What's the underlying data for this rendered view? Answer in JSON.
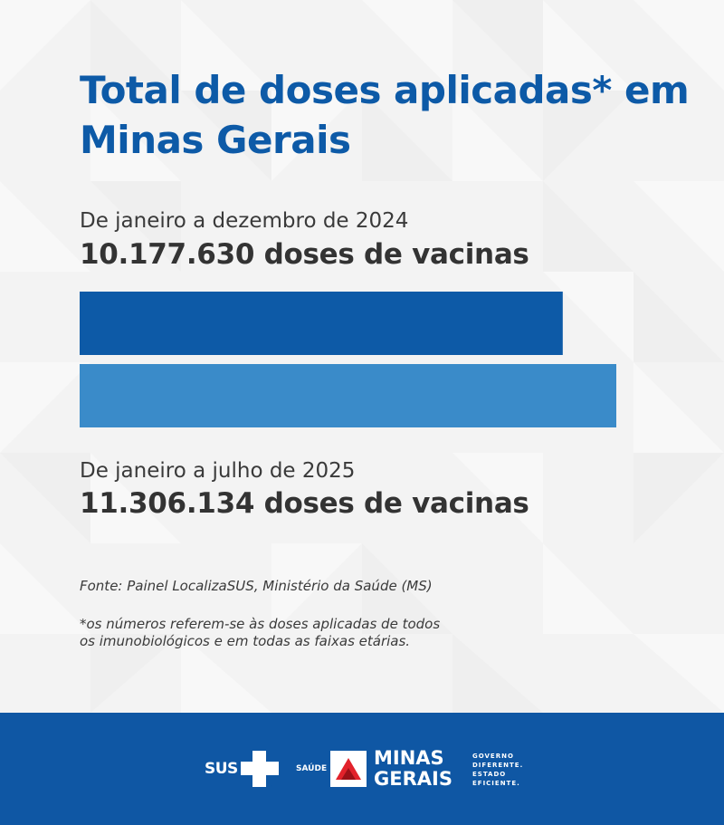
{
  "title": "Total de doses aplicadas* em Minas Gerais",
  "colors": {
    "primary": "#0d5aa7",
    "secondary": "#3a8bc9",
    "footer": "#0f57a4"
  },
  "chart_data": {
    "type": "bar",
    "orientation": "horizontal",
    "categories": [
      "De janeiro a dezembro de 2024",
      "De janeiro a julho de 2025"
    ],
    "values": [
      10177630,
      11306134
    ],
    "value_labels": [
      "10.177.630 doses de vacinas",
      "11.306.134 doses de vacinas"
    ],
    "colors": [
      "#0d5aa7",
      "#3a8bc9"
    ]
  },
  "source": "Fonte: Painel LocalizaSUS, Ministério da Saúde (MS)",
  "footnote": "*os números referem-se às doses aplicadas de todos\nos imunobiológicos e em todas as faixas etárias.",
  "footer": {
    "sus_label": "SUS",
    "saude_label": "SAÚDE",
    "org_line1": "MINAS",
    "org_line2": "GERAIS",
    "slogan": "GOVERNO\nDIFERENTE.\nESTADO\nEFICIENTE."
  }
}
